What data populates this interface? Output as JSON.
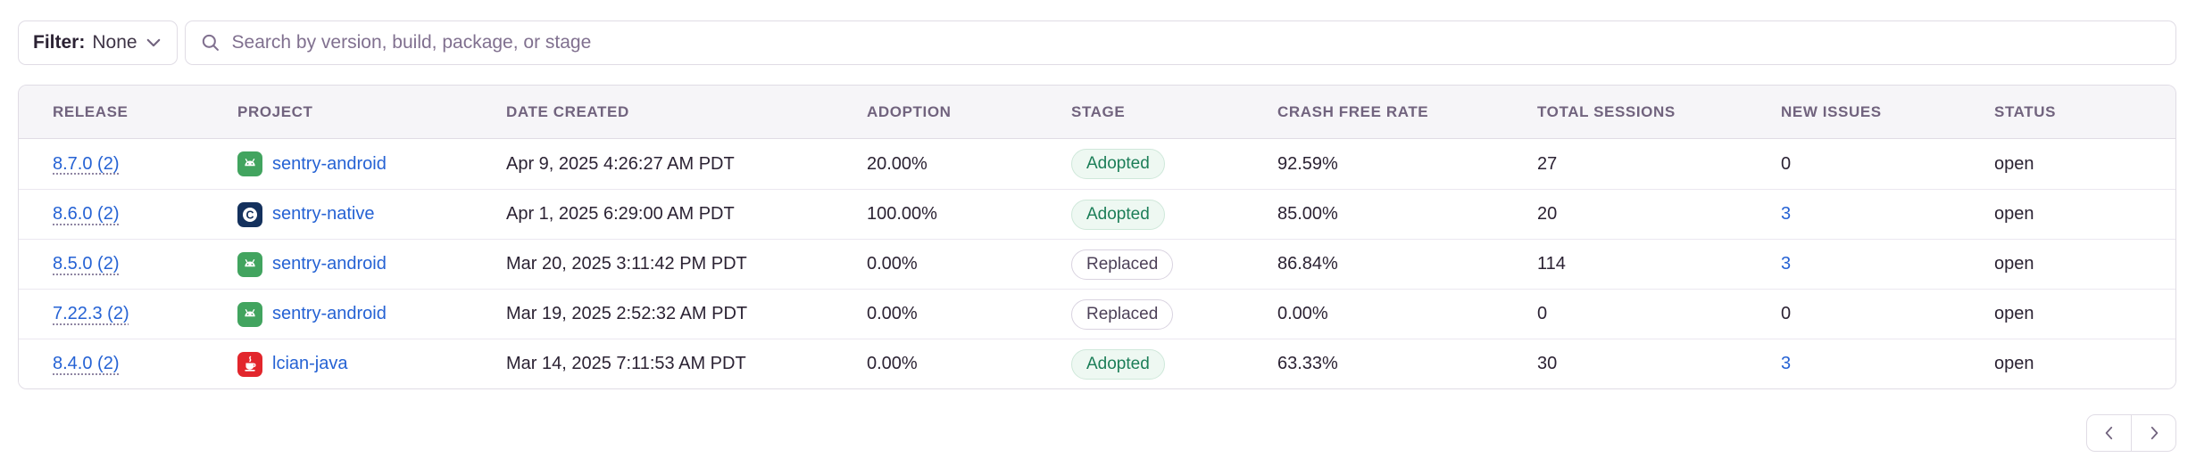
{
  "filter": {
    "label": "Filter:",
    "value": "None"
  },
  "search": {
    "placeholder": "Search by version, build, package, or stage"
  },
  "table": {
    "columns": [
      "RELEASE",
      "PROJECT",
      "DATE CREATED",
      "ADOPTION",
      "STAGE",
      "CRASH FREE RATE",
      "TOTAL SESSIONS",
      "NEW ISSUES",
      "STATUS"
    ],
    "rows": [
      {
        "release": "8.7.0 (2)",
        "project": "sentry-android",
        "platform": "android",
        "date_created": "Apr 9, 2025 4:26:27 AM PDT",
        "adoption": "20.00%",
        "stage": "Adopted",
        "crash_free_rate": "92.59%",
        "total_sessions": "27",
        "new_issues": "0",
        "new_issues_link": false,
        "status": "open"
      },
      {
        "release": "8.6.0 (2)",
        "project": "sentry-native",
        "platform": "native",
        "date_created": "Apr 1, 2025 6:29:00 AM PDT",
        "adoption": "100.00%",
        "stage": "Adopted",
        "crash_free_rate": "85.00%",
        "total_sessions": "20",
        "new_issues": "3",
        "new_issues_link": true,
        "status": "open"
      },
      {
        "release": "8.5.0 (2)",
        "project": "sentry-android",
        "platform": "android",
        "date_created": "Mar 20, 2025 3:11:42 PM PDT",
        "adoption": "0.00%",
        "stage": "Replaced",
        "crash_free_rate": "86.84%",
        "total_sessions": "114",
        "new_issues": "3",
        "new_issues_link": true,
        "status": "open"
      },
      {
        "release": "7.22.3 (2)",
        "project": "sentry-android",
        "platform": "android",
        "date_created": "Mar 19, 2025 2:52:32 AM PDT",
        "adoption": "0.00%",
        "stage": "Replaced",
        "crash_free_rate": "0.00%",
        "total_sessions": "0",
        "new_issues": "0",
        "new_issues_link": false,
        "status": "open"
      },
      {
        "release": "8.4.0 (2)",
        "project": "lcian-java",
        "platform": "java",
        "date_created": "Mar 14, 2025 7:11:53 AM PDT",
        "adoption": "0.00%",
        "stage": "Adopted",
        "crash_free_rate": "63.33%",
        "total_sessions": "30",
        "new_issues": "3",
        "new_issues_link": true,
        "status": "open"
      }
    ]
  },
  "pagination": {
    "icons": [
      "chevron-left-icon",
      "chevron-right-icon"
    ]
  },
  "icons": [
    "search-icon",
    "chevron-down-icon",
    "android-platform-icon",
    "native-platform-icon",
    "java-platform-icon"
  ],
  "colors": {
    "link_blue": "#2562d4",
    "text_dark": "#2b2233",
    "header_gray_purple": "#71637e",
    "border": "#e0dce5",
    "header_bg": "#f6f5f8",
    "adopted_green": "#1c7e58",
    "android_green": "#42a45f",
    "native_navy": "#14315d",
    "java_red": "#e2262c"
  }
}
